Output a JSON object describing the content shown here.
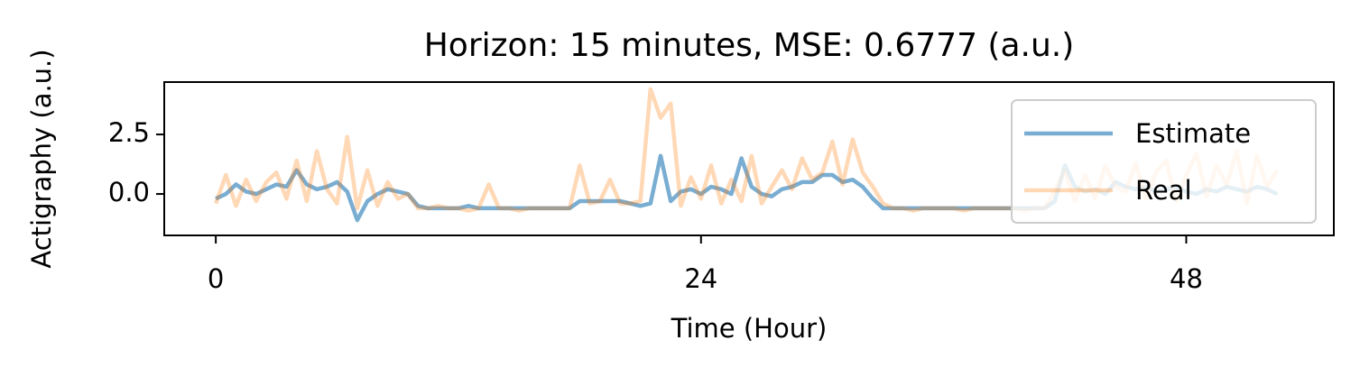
{
  "chart_data": {
    "type": "line",
    "title": "Horizon: 15 minutes, MSE: 0.6777 (a.u.)",
    "xlabel": "Time (Hour)",
    "ylabel": "Actigraphy (a.u.)",
    "x": [
      0,
      0.5,
      1,
      1.5,
      2,
      2.5,
      3,
      3.5,
      4,
      4.5,
      5,
      5.5,
      6,
      6.5,
      7,
      7.5,
      8,
      8.5,
      9,
      9.5,
      10,
      10.5,
      11,
      11.5,
      12,
      12.5,
      13,
      13.5,
      14,
      14.5,
      15,
      15.5,
      16,
      16.5,
      17,
      17.5,
      18,
      18.5,
      19,
      19.5,
      20,
      20.5,
      21,
      21.5,
      22,
      22.5,
      23,
      23.5,
      24,
      24.5,
      25,
      25.5,
      26,
      26.5,
      27,
      27.5,
      28,
      28.5,
      29,
      29.5,
      30,
      30.5,
      31,
      31.5,
      32,
      32.5,
      33,
      33.5,
      34,
      34.5,
      35,
      35.5,
      36,
      36.5,
      37,
      37.5,
      38,
      38.5,
      39,
      39.5,
      40,
      40.5,
      41,
      41.5,
      42,
      42.5,
      43,
      43.5,
      44,
      44.5,
      45,
      45.5,
      46,
      46.5,
      47,
      47.5,
      48,
      48.5,
      49,
      49.5,
      50,
      50.5,
      51,
      51.5,
      52,
      52.5
    ],
    "series": [
      {
        "name": "Estimate",
        "color": "#1f77b4",
        "alpha": 0.6,
        "values": [
          -0.2,
          0.0,
          0.4,
          0.1,
          0.0,
          0.2,
          0.4,
          0.3,
          1.0,
          0.4,
          0.2,
          0.3,
          0.5,
          0.1,
          -1.1,
          -0.3,
          0.0,
          0.2,
          0.1,
          0.0,
          -0.5,
          -0.6,
          -0.6,
          -0.6,
          -0.6,
          -0.5,
          -0.6,
          -0.6,
          -0.6,
          -0.6,
          -0.6,
          -0.6,
          -0.6,
          -0.6,
          -0.6,
          -0.6,
          -0.3,
          -0.3,
          -0.3,
          -0.3,
          -0.3,
          -0.4,
          -0.5,
          -0.4,
          1.6,
          -0.3,
          0.1,
          0.2,
          0.0,
          0.3,
          0.2,
          0.0,
          1.5,
          0.3,
          0.0,
          -0.1,
          0.2,
          0.3,
          0.5,
          0.5,
          0.8,
          0.8,
          0.5,
          0.6,
          0.3,
          -0.2,
          -0.6,
          -0.6,
          -0.6,
          -0.6,
          -0.6,
          -0.6,
          -0.6,
          -0.6,
          -0.6,
          -0.6,
          -0.6,
          -0.6,
          -0.6,
          -0.6,
          -0.6,
          -0.6,
          -0.6,
          -0.3,
          1.2,
          0.3,
          0.1,
          0.2,
          0.0,
          0.5,
          0.3,
          0.2,
          0.3,
          0.1,
          0.2,
          0.3,
          0.1,
          0.0,
          0.2,
          0.1,
          0.3,
          0.2,
          0.1,
          0.3,
          0.2,
          0.0
        ]
      },
      {
        "name": "Real",
        "color": "#ff7f0e",
        "alpha": 0.3,
        "values": [
          -0.4,
          0.8,
          -0.5,
          0.6,
          -0.3,
          0.5,
          0.9,
          -0.2,
          1.4,
          -0.3,
          1.8,
          0.2,
          -0.4,
          2.4,
          -0.6,
          1.0,
          -0.5,
          0.5,
          -0.2,
          0.0,
          -0.6,
          -0.6,
          -0.5,
          -0.6,
          -0.6,
          -0.7,
          -0.6,
          0.4,
          -0.6,
          -0.6,
          -0.7,
          -0.6,
          -0.6,
          -0.6,
          -0.6,
          -0.6,
          1.2,
          -0.4,
          -0.3,
          0.6,
          -0.4,
          -0.4,
          -0.3,
          4.4,
          3.2,
          3.8,
          -0.5,
          0.7,
          -0.2,
          1.2,
          -0.4,
          0.6,
          -0.3,
          1.6,
          -0.4,
          0.3,
          1.0,
          0.2,
          1.5,
          0.6,
          0.9,
          2.2,
          0.4,
          2.3,
          0.9,
          0.3,
          -0.4,
          -0.6,
          -0.6,
          -0.7,
          -0.6,
          -0.6,
          -0.6,
          -0.6,
          -0.7,
          -0.6,
          -0.6,
          -0.6,
          -0.6,
          -0.6,
          -0.7,
          -0.6,
          -0.6,
          0.1,
          1.0,
          -0.3,
          0.8,
          -0.2,
          1.2,
          0.3,
          0.1,
          1.3,
          -0.2,
          0.9,
          1.4,
          -0.3,
          0.8,
          1.7,
          -0.1,
          1.2,
          0.4,
          1.8,
          -0.4,
          1.6,
          0.3,
          1.0
        ]
      }
    ],
    "xlim": [
      -2.55,
      55.3
    ],
    "xticks": [
      0,
      24,
      48
    ],
    "ylim": [
      -1.74,
      4.7
    ],
    "yticks": [
      {
        "value": 0,
        "label": "0.0"
      },
      2.5
    ],
    "legend": "upper right"
  }
}
